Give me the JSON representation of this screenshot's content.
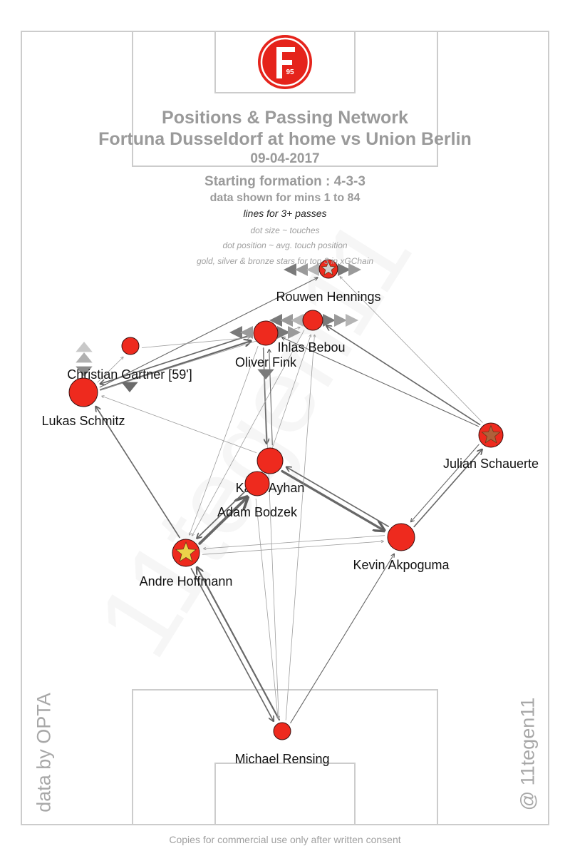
{
  "header": {
    "title_line1": "Positions & Passing Network",
    "title_line2": "Fortuna Dusseldorf at home vs Union Berlin",
    "date": "09-04-2017",
    "formation": "Starting formation : 4-3-3",
    "minutes": "data shown for mins 1 to 84",
    "lines_note": "lines for 3+ passes",
    "legend_size": "dot size ~ touches",
    "legend_position": "dot position ~ avg. touch position",
    "legend_stars": "gold, silver & bronze stars for top 3 in xGChain"
  },
  "watermark": "11tegen11",
  "credit_left": "data by OPTA",
  "credit_right": "@ 11tegen11",
  "footer": "Copies for commercial use only after written consent",
  "logo": {
    "text": "95",
    "icon": "fortuna-duesseldorf-crest-icon"
  },
  "colors": {
    "player": "#ee2a1e",
    "line": "#6e6e6e",
    "text_grey": "#9a9a9a",
    "pitch": "#cccccc",
    "gold": "#ecd24a",
    "silver": "#cfcfcf",
    "bronze": "#b0603a"
  },
  "players": [
    {
      "id": "hennings",
      "name": "Rouwen Hennings",
      "star": "silver",
      "touches": 26
    },
    {
      "id": "bebou",
      "name": "Ihlas Bebou",
      "star": null,
      "touches": 28
    },
    {
      "id": "fink",
      "name": "Oliver Fink",
      "star": null,
      "touches": 35
    },
    {
      "id": "gartner",
      "name": "Christian Gartner [59']",
      "star": null,
      "touches": 20
    },
    {
      "id": "schmitz",
      "name": "Lukas Schmitz",
      "star": null,
      "touches": 42
    },
    {
      "id": "schauerte",
      "name": "Julian Schauerte",
      "star": "bronze",
      "touches": 34
    },
    {
      "id": "ayhan",
      "name": "Kaan Ayhan",
      "star": null,
      "touches": 38
    },
    {
      "id": "bodzek",
      "name": "Adam Bodzek",
      "star": null,
      "touches": 36
    },
    {
      "id": "hoffmann",
      "name": "Andre Hoffmann",
      "star": "gold",
      "touches": 40
    },
    {
      "id": "akpoguma",
      "name": "Kevin Akpoguma",
      "star": null,
      "touches": 44
    },
    {
      "id": "rensing",
      "name": "Michael Rensing",
      "star": null,
      "touches": 22
    }
  ],
  "passes": [
    {
      "from": "hoffmann",
      "to": "bodzek",
      "count": 9
    },
    {
      "from": "bodzek",
      "to": "hoffmann",
      "count": 5
    },
    {
      "from": "ayhan",
      "to": "akpoguma",
      "count": 8
    },
    {
      "from": "akpoguma",
      "to": "ayhan",
      "count": 5
    },
    {
      "from": "hoffmann",
      "to": "schmitz",
      "count": 5
    },
    {
      "from": "hoffmann",
      "to": "rensing",
      "count": 5
    },
    {
      "from": "rensing",
      "to": "hoffmann",
      "count": 6
    },
    {
      "from": "rensing",
      "to": "akpoguma",
      "count": 4
    },
    {
      "from": "akpoguma",
      "to": "schauerte",
      "count": 5
    },
    {
      "from": "schauerte",
      "to": "akpoguma",
      "count": 4
    },
    {
      "from": "schmitz",
      "to": "fink",
      "count": 6
    },
    {
      "from": "fink",
      "to": "schmitz",
      "count": 5
    },
    {
      "from": "schmitz",
      "to": "hennings",
      "count": 4
    },
    {
      "from": "schmitz",
      "to": "bebou",
      "count": 3
    },
    {
      "from": "fink",
      "to": "ayhan",
      "count": 5
    },
    {
      "from": "schauerte",
      "to": "bebou",
      "count": 5
    },
    {
      "from": "schauerte",
      "to": "fink",
      "count": 4
    },
    {
      "from": "schauerte",
      "to": "hennings",
      "count": 3
    },
    {
      "from": "bebou",
      "to": "hoffmann",
      "count": 3
    },
    {
      "from": "akpoguma",
      "to": "hoffmann",
      "count": 3
    },
    {
      "from": "fink",
      "to": "rensing",
      "count": 3
    },
    {
      "from": "ayhan",
      "to": "fink",
      "count": 4
    },
    {
      "from": "bodzek",
      "to": "bebou",
      "count": 3
    },
    {
      "from": "gartner",
      "to": "fink",
      "count": 3
    },
    {
      "from": "rensing",
      "to": "bebou",
      "count": 3
    },
    {
      "from": "ayhan",
      "to": "schmitz",
      "count": 3
    },
    {
      "from": "hoffmann",
      "to": "akpoguma",
      "count": 3
    },
    {
      "from": "bodzek",
      "to": "rensing",
      "count": 3
    },
    {
      "from": "fink",
      "to": "hoffmann",
      "count": 3
    },
    {
      "from": "schmitz",
      "to": "gartner",
      "count": 3
    }
  ]
}
